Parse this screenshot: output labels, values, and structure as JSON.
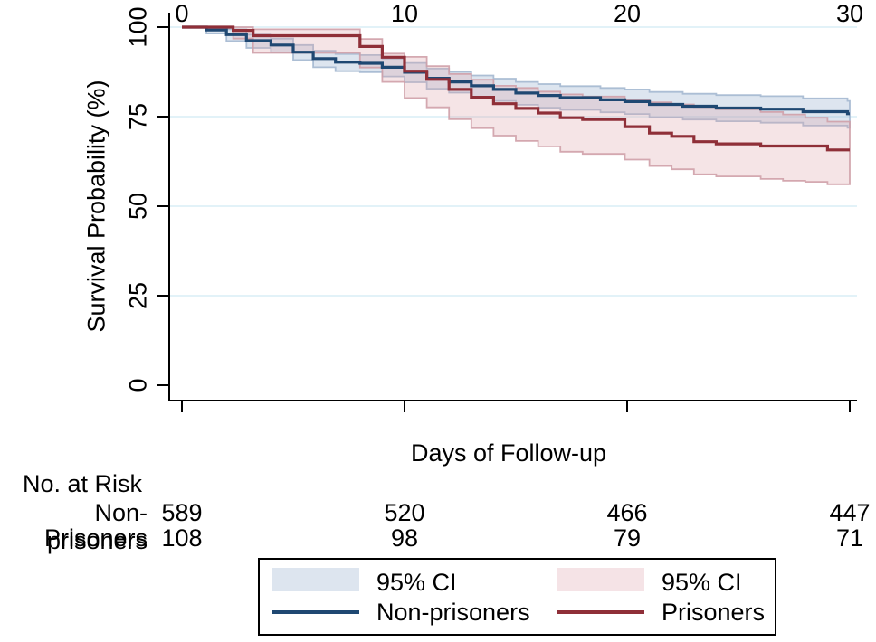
{
  "chart_data": {
    "type": "line",
    "subtype": "kaplan-meier-step-curves-with-ci-bands",
    "title": "",
    "xlabel": "Days of Follow-up",
    "ylabel": "Survival Probability (%)",
    "xlim": [
      0,
      30
    ],
    "ylim": [
      0,
      100
    ],
    "x_ticks": [
      0,
      10,
      20,
      30
    ],
    "y_ticks": [
      0,
      25,
      50,
      75,
      100
    ],
    "grid_y_values": [
      25,
      50,
      75,
      100
    ],
    "grid_color": "#d9edf5",
    "axis_color": "#000000",
    "legend_position": "bottom",
    "series": [
      {
        "name": "Non-prisoners",
        "color": "#1f4872",
        "ci_label": "95% CI",
        "ci_fill": "#8ea8ca",
        "ci_edge": "#a4b8d0",
        "line": [
          [
            0,
            100
          ],
          [
            1.1,
            99.2
          ],
          [
            2,
            97.9
          ],
          [
            2.9,
            96.2
          ],
          [
            4,
            95
          ],
          [
            5,
            93
          ],
          [
            5.9,
            91.2
          ],
          [
            6.9,
            90.2
          ],
          [
            8,
            89.9
          ],
          [
            9,
            88.8
          ],
          [
            10,
            87.4
          ],
          [
            11,
            85.7
          ],
          [
            12,
            84.7
          ],
          [
            13,
            83.6
          ],
          [
            14,
            82.6
          ],
          [
            15,
            81.6
          ],
          [
            16,
            80.9
          ],
          [
            17,
            80.3
          ],
          [
            18.8,
            79.7
          ],
          [
            19.9,
            79.2
          ],
          [
            21,
            78.4
          ],
          [
            22.5,
            77.9
          ],
          [
            24,
            77.4
          ],
          [
            26,
            77.1
          ],
          [
            27.9,
            76.4
          ],
          [
            29.9,
            75.8
          ]
        ],
        "ci_upper": [
          [
            0,
            100
          ],
          [
            2,
            99.4
          ],
          [
            2.9,
            97.9
          ],
          [
            4,
            96.8
          ],
          [
            5,
            95
          ],
          [
            5.9,
            93.4
          ],
          [
            6.9,
            92.5
          ],
          [
            8,
            92.2
          ],
          [
            9,
            91.2
          ],
          [
            10,
            90
          ],
          [
            11,
            88.4
          ],
          [
            12,
            87.5
          ],
          [
            13,
            86.5
          ],
          [
            14,
            85.6
          ],
          [
            15,
            84.7
          ],
          [
            16,
            84.1
          ],
          [
            17,
            83.5
          ],
          [
            18.8,
            83
          ],
          [
            19.9,
            82.6
          ],
          [
            21,
            81.9
          ],
          [
            22.5,
            81.4
          ],
          [
            24,
            81
          ],
          [
            26,
            80.7
          ],
          [
            27.9,
            80.1
          ],
          [
            29.9,
            79.4
          ]
        ],
        "ci_lower": [
          [
            0,
            100
          ],
          [
            1.1,
            98.2
          ],
          [
            2,
            96.1
          ],
          [
            2.9,
            94.2
          ],
          [
            4,
            92.9
          ],
          [
            5,
            90.8
          ],
          [
            5.9,
            88.8
          ],
          [
            6.9,
            87.7
          ],
          [
            8,
            87.4
          ],
          [
            9,
            86.2
          ],
          [
            10,
            84.6
          ],
          [
            11,
            82.8
          ],
          [
            12,
            81.7
          ],
          [
            13,
            80.5
          ],
          [
            14,
            79.4
          ],
          [
            15,
            78.3
          ],
          [
            16,
            77.5
          ],
          [
            17,
            76.9
          ],
          [
            18.8,
            76.2
          ],
          [
            19.9,
            75.7
          ],
          [
            21,
            74.8
          ],
          [
            22.5,
            74.2
          ],
          [
            24,
            73.7
          ],
          [
            26,
            73.3
          ],
          [
            27.9,
            72.5
          ],
          [
            29.9,
            71.9
          ]
        ]
      },
      {
        "name": "Prisoners",
        "color": "#8f2f38",
        "ci_label": "95% CI",
        "ci_fill": "#dea5ac",
        "ci_edge": "#cfa0a8",
        "line": [
          [
            0,
            100
          ],
          [
            2.3,
            99.1
          ],
          [
            3.2,
            97.6
          ],
          [
            8,
            94.6
          ],
          [
            9,
            91.6
          ],
          [
            10,
            87.7
          ],
          [
            11,
            85.4
          ],
          [
            12,
            82.6
          ],
          [
            13,
            80.4
          ],
          [
            14,
            78.6
          ],
          [
            15,
            77.3
          ],
          [
            16,
            76
          ],
          [
            17,
            74.7
          ],
          [
            18,
            74.2
          ],
          [
            19.9,
            72.2
          ],
          [
            21,
            70.4
          ],
          [
            22,
            69.5
          ],
          [
            23,
            68
          ],
          [
            24,
            67.4
          ],
          [
            26,
            66.8
          ],
          [
            29,
            65.7
          ]
        ],
        "ci_upper": [
          [
            0,
            100
          ],
          [
            3.2,
            99.4
          ],
          [
            8,
            96.7
          ],
          [
            9,
            92.6
          ],
          [
            10,
            91.7
          ],
          [
            11,
            89.1
          ],
          [
            12,
            86.9
          ],
          [
            13,
            85.3
          ],
          [
            14,
            83.6
          ],
          [
            15,
            83
          ],
          [
            16,
            82
          ],
          [
            17,
            81.2
          ],
          [
            18,
            80.6
          ],
          [
            19.9,
            79.8
          ],
          [
            21,
            79
          ],
          [
            22,
            78.4
          ],
          [
            23,
            77.7
          ],
          [
            24,
            77.1
          ],
          [
            26,
            76.3
          ],
          [
            27,
            75.6
          ],
          [
            28,
            74.7
          ],
          [
            29,
            73.6
          ]
        ],
        "ci_lower": [
          [
            0,
            100
          ],
          [
            2.3,
            96.8
          ],
          [
            3.2,
            92.8
          ],
          [
            8,
            88.7
          ],
          [
            9,
            84.7
          ],
          [
            10,
            80.2
          ],
          [
            11,
            77.6
          ],
          [
            12,
            74.3
          ],
          [
            13,
            71.8
          ],
          [
            14,
            69.7
          ],
          [
            15,
            68.2
          ],
          [
            16,
            66.7
          ],
          [
            17,
            65.2
          ],
          [
            18,
            64.6
          ],
          [
            19.9,
            63
          ],
          [
            21,
            61.2
          ],
          [
            22,
            60.3
          ],
          [
            23,
            58.9
          ],
          [
            24,
            58.3
          ],
          [
            26,
            57.6
          ],
          [
            27,
            57.1
          ],
          [
            28,
            56.8
          ],
          [
            29,
            56.1
          ]
        ]
      }
    ]
  },
  "risk_table": {
    "heading": "No. at Risk",
    "days": [
      0,
      10,
      20,
      30
    ],
    "rows": [
      {
        "label": "Non-prisoners",
        "values": [
          589,
          520,
          466,
          447
        ]
      },
      {
        "label": "Prisoners",
        "values": [
          108,
          98,
          79,
          71
        ]
      }
    ]
  },
  "legend": {
    "entries": [
      {
        "type": "area",
        "color": "#dde5ef",
        "label": "95% CI"
      },
      {
        "type": "area",
        "color": "#f5e3e6",
        "label": "95% CI"
      },
      {
        "type": "line",
        "color": "#1f4872",
        "label": "Non-prisoners"
      },
      {
        "type": "line",
        "color": "#8f2f38",
        "label": "Prisoners"
      }
    ]
  }
}
